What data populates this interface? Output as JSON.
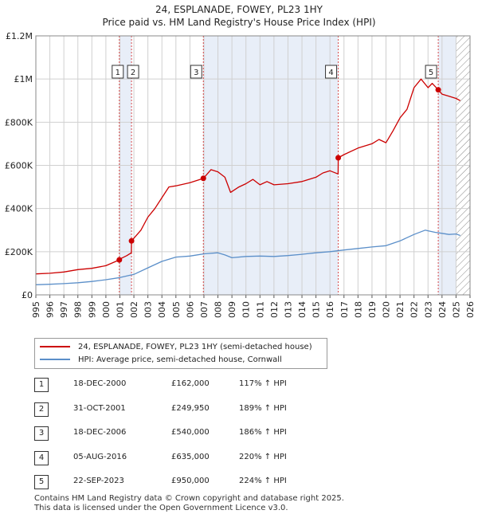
{
  "title_line1": "24, ESPLANADE, FOWEY, PL23 1HY",
  "title_line2": "Price paid vs. HM Land Registry's House Price Index (HPI)",
  "colors": {
    "property": "#cc0000",
    "hpi": "#5b8fc9",
    "shade": "#e8eef8",
    "grid": "#d0d0d0",
    "hatch": "#888888"
  },
  "legend": {
    "property_label": "24, ESPLANADE, FOWEY, PL23 1HY (semi-detached house)",
    "hpi_label": "HPI: Average price, semi-detached house, Cornwall"
  },
  "sales": [
    {
      "num": "1",
      "date": "18-DEC-2000",
      "price": "£162,000",
      "hpi_pct": "117% ↑ HPI"
    },
    {
      "num": "2",
      "date": "31-OCT-2001",
      "price": "£249,950",
      "hpi_pct": "189% ↑ HPI"
    },
    {
      "num": "3",
      "date": "18-DEC-2006",
      "price": "£540,000",
      "hpi_pct": "186% ↑ HPI"
    },
    {
      "num": "4",
      "date": "05-AUG-2016",
      "price": "£635,000",
      "hpi_pct": "220% ↑ HPI"
    },
    {
      "num": "5",
      "date": "22-SEP-2023",
      "price": "£950,000",
      "hpi_pct": "224% ↑ HPI"
    }
  ],
  "footer_line1": "Contains HM Land Registry data © Crown copyright and database right 2025.",
  "footer_line2": "This data is licensed under the Open Government Licence v3.0.",
  "chart_data": {
    "type": "line",
    "title": "24, ESPLANADE, FOWEY, PL23 1HY",
    "subtitle": "Price paid vs. HM Land Registry's House Price Index (HPI)",
    "xlim": [
      1995,
      2026
    ],
    "ylim": [
      0,
      1200000
    ],
    "y_ticks": [
      0,
      200000,
      400000,
      600000,
      800000,
      1000000,
      1200000
    ],
    "y_tick_labels": [
      "£0",
      "£200K",
      "£400K",
      "£600K",
      "£800K",
      "£1M",
      "£1.2M"
    ],
    "x_ticks": [
      1995,
      1996,
      1997,
      1998,
      1999,
      2000,
      2001,
      2002,
      2003,
      2004,
      2005,
      2006,
      2007,
      2008,
      2009,
      2010,
      2011,
      2012,
      2013,
      2014,
      2015,
      2016,
      2017,
      2018,
      2019,
      2020,
      2021,
      2022,
      2023,
      2024,
      2025,
      2026
    ],
    "grid": true,
    "shaded_ranges": [
      [
        2000.96,
        2001.83
      ],
      [
        2006.96,
        2016.59
      ],
      [
        2023.73,
        2025.0
      ]
    ],
    "hatched_range": [
      2025.0,
      2026.0
    ],
    "sale_markers": [
      {
        "label": "1",
        "x": 2000.96,
        "y": 162000
      },
      {
        "label": "2",
        "x": 2001.83,
        "y": 249950
      },
      {
        "label": "3",
        "x": 2006.96,
        "y": 540000
      },
      {
        "label": "4",
        "x": 2016.59,
        "y": 635000
      },
      {
        "label": "5",
        "x": 2023.73,
        "y": 950000
      }
    ],
    "series": [
      {
        "name": "24, ESPLANADE, FOWEY, PL23 1HY (semi-detached house)",
        "color": "#cc0000",
        "x": [
          1995,
          1996,
          1997,
          1998,
          1999,
          2000,
          2000.96,
          2000.97,
          2001.5,
          2001.82,
          2001.83,
          2002.5,
          2003,
          2003.5,
          2004,
          2004.5,
          2005,
          2006,
          2006.96,
          2007.5,
          2008,
          2008.5,
          2008.9,
          2009.5,
          2010,
          2010.5,
          2011,
          2011.5,
          2012,
          2013,
          2014,
          2015,
          2015.5,
          2016,
          2016.58,
          2016.59,
          2017,
          2018,
          2019,
          2019.5,
          2020,
          2020.5,
          2021,
          2021.5,
          2022,
          2022.5,
          2023,
          2023.3,
          2023.73,
          2024,
          2024.5,
          2025,
          2025.3
        ],
        "values": [
          97000,
          100000,
          106000,
          117000,
          123000,
          135000,
          162000,
          165000,
          182000,
          195000,
          249950,
          300000,
          360000,
          400000,
          450000,
          500000,
          505000,
          520000,
          540000,
          580000,
          570000,
          545000,
          475000,
          500000,
          515000,
          535000,
          510000,
          525000,
          510000,
          515000,
          525000,
          545000,
          565000,
          575000,
          560000,
          635000,
          650000,
          680000,
          700000,
          720000,
          705000,
          760000,
          820000,
          860000,
          960000,
          1000000,
          960000,
          980000,
          950000,
          930000,
          920000,
          910000,
          900000
        ]
      },
      {
        "name": "HPI: Average price, semi-detached house, Cornwall",
        "color": "#5b8fc9",
        "x": [
          1995,
          1996,
          1997,
          1998,
          1999,
          2000,
          2001,
          2002,
          2003,
          2004,
          2005,
          2006,
          2007,
          2008,
          2008.5,
          2009,
          2010,
          2011,
          2012,
          2013,
          2014,
          2015,
          2016,
          2017,
          2018,
          2019,
          2020,
          2021,
          2022,
          2022.8,
          2023,
          2023.5,
          2024,
          2024.5,
          2025,
          2025.3
        ],
        "values": [
          47000,
          49000,
          52000,
          56000,
          62000,
          70000,
          80000,
          95000,
          125000,
          155000,
          175000,
          180000,
          190000,
          195000,
          185000,
          172000,
          178000,
          180000,
          178000,
          182000,
          188000,
          195000,
          200000,
          208000,
          215000,
          222000,
          228000,
          250000,
          280000,
          300000,
          297000,
          290000,
          285000,
          280000,
          282000,
          275000
        ]
      }
    ]
  }
}
